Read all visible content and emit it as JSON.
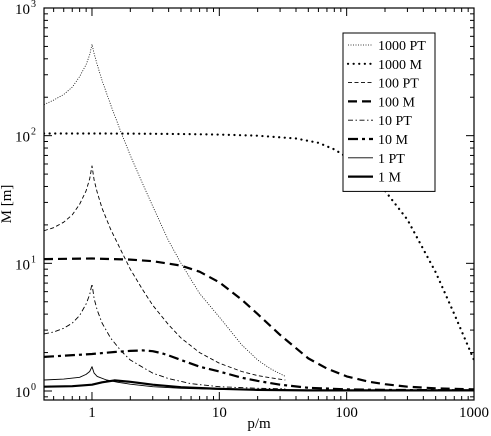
{
  "chart_data": {
    "type": "line",
    "title": "",
    "xlabel": "p/m",
    "ylabel": "M [m]",
    "xscale": "log",
    "yscale": "log",
    "xlim": [
      0.42,
      1000
    ],
    "ylim": [
      0.85,
      1000
    ],
    "grid": false,
    "legend_position": "top-right",
    "x_ticks": [
      {
        "value": 1,
        "label": "1"
      },
      {
        "value": 10,
        "label": "10"
      },
      {
        "value": 100,
        "label": "100"
      },
      {
        "value": 1000,
        "label": "1000"
      }
    ],
    "y_ticks": [
      {
        "value": 1,
        "base": "10",
        "exp": "0"
      },
      {
        "value": 10,
        "base": "10",
        "exp": "1"
      },
      {
        "value": 100,
        "base": "10",
        "exp": "2"
      },
      {
        "value": 1000,
        "base": "10",
        "exp": "3"
      }
    ],
    "series": [
      {
        "name": "1000 PT",
        "style": "dotted-thin",
        "x": [
          0.42,
          0.5,
          0.6,
          0.7,
          0.8,
          0.9,
          0.96,
          1.0,
          1.04,
          1.1,
          1.2,
          1.4,
          1.7,
          2,
          2.5,
          3,
          4,
          5,
          7,
          10,
          15,
          20,
          25,
          33
        ],
        "y": [
          175,
          190,
          210,
          240,
          290,
          360,
          430,
          520,
          440,
          360,
          270,
          175,
          105,
          70,
          42,
          28,
          15,
          10,
          5.8,
          3.8,
          2.3,
          1.75,
          1.5,
          1.3
        ]
      },
      {
        "name": "1000 M",
        "style": "dotted-thick",
        "x": [
          0.42,
          1,
          2,
          5,
          10,
          20,
          40,
          60,
          80,
          100,
          150,
          200,
          300,
          500,
          700,
          1000
        ],
        "y": [
          104,
          104,
          103.8,
          103,
          102,
          100,
          95,
          88,
          78,
          68,
          50,
          37,
          22,
          8.5,
          4,
          1.75
        ]
      },
      {
        "name": "100 PT",
        "style": "dashed-thin",
        "x": [
          0.42,
          0.5,
          0.6,
          0.7,
          0.8,
          0.9,
          0.96,
          1.0,
          1.04,
          1.1,
          1.2,
          1.4,
          1.7,
          2,
          2.5,
          3,
          4,
          5,
          7,
          10,
          15,
          20,
          25,
          33
        ],
        "y": [
          18,
          19,
          21,
          24,
          29,
          37,
          46,
          58,
          45,
          36,
          27,
          18.5,
          12.5,
          9,
          6.2,
          4.7,
          3.3,
          2.6,
          2,
          1.65,
          1.42,
          1.32,
          1.27,
          1.22
        ]
      },
      {
        "name": "100 M",
        "style": "dashed-thick",
        "x": [
          0.42,
          1,
          2,
          3,
          5,
          7,
          10,
          15,
          20,
          30,
          50,
          70,
          100,
          150,
          200,
          300,
          500,
          1000
        ],
        "y": [
          10.8,
          10.9,
          10.7,
          10.4,
          9.6,
          8.6,
          7.1,
          5.2,
          4,
          2.75,
          1.8,
          1.5,
          1.3,
          1.18,
          1.13,
          1.08,
          1.05,
          1.03
        ]
      },
      {
        "name": "10 PT",
        "style": "dashdot-thin",
        "x": [
          0.42,
          0.5,
          0.6,
          0.7,
          0.8,
          0.9,
          0.96,
          1.0,
          1.04,
          1.1,
          1.2,
          1.4,
          1.7,
          2,
          3,
          4,
          6,
          10,
          20,
          33
        ],
        "y": [
          2.8,
          2.9,
          3.1,
          3.4,
          3.9,
          4.8,
          5.7,
          6.9,
          5.3,
          4.3,
          3.4,
          2.6,
          2.05,
          1.75,
          1.38,
          1.25,
          1.14,
          1.08,
          1.05,
          1.04
        ]
      },
      {
        "name": "10 M",
        "style": "dashdot-thick",
        "x": [
          0.42,
          1,
          1.5,
          2,
          2.5,
          3,
          3.5,
          4,
          5,
          7,
          10,
          15,
          20,
          30,
          50,
          100,
          200,
          1000
        ],
        "y": [
          1.85,
          1.95,
          2.02,
          2.06,
          2.08,
          2.05,
          1.98,
          1.9,
          1.75,
          1.55,
          1.42,
          1.27,
          1.2,
          1.12,
          1.06,
          1.03,
          1.02,
          1.01
        ]
      },
      {
        "name": "1 PT",
        "style": "solid-thin",
        "x": [
          0.42,
          0.6,
          0.8,
          0.9,
          0.96,
          1.0,
          1.04,
          1.1,
          1.3,
          1.6,
          2,
          3,
          5,
          10,
          33
        ],
        "y": [
          1.22,
          1.24,
          1.28,
          1.35,
          1.42,
          1.55,
          1.38,
          1.3,
          1.22,
          1.17,
          1.13,
          1.08,
          1.05,
          1.03,
          1.02
        ]
      },
      {
        "name": "1 M",
        "style": "solid-thick",
        "x": [
          0.42,
          0.7,
          1,
          1.2,
          1.5,
          2,
          3,
          5,
          10,
          20,
          50,
          100,
          1000
        ],
        "y": [
          1.08,
          1.09,
          1.12,
          1.17,
          1.21,
          1.18,
          1.12,
          1.07,
          1.04,
          1.02,
          1.01,
          1.01,
          1.01
        ]
      }
    ]
  }
}
